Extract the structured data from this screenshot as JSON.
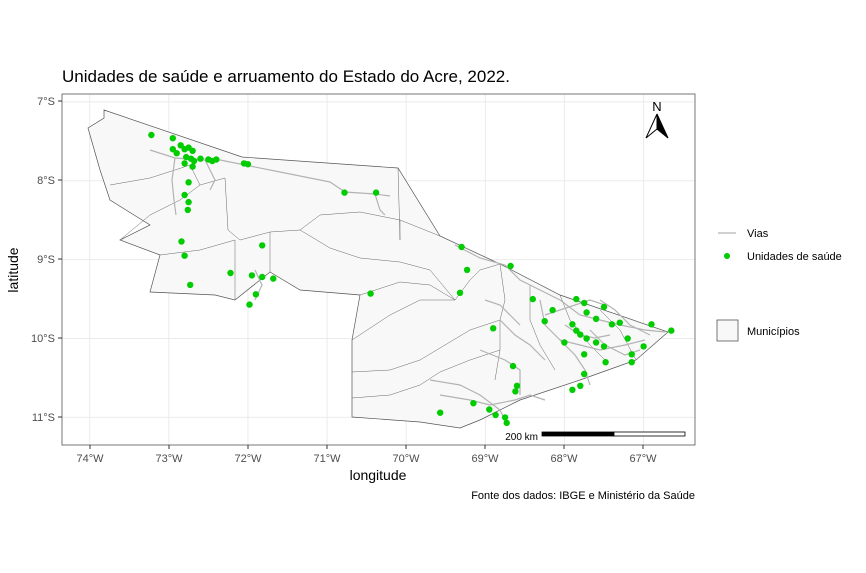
{
  "title": "Unidades de saúde e arruamento do Estado do Acre, 2022.",
  "caption": "Fonte dos dados: IBGE e Ministério da Saúde",
  "axes": {
    "xlabel": "longitude",
    "ylabel": "latitude",
    "xticks": [
      "74°W",
      "73°W",
      "72°W",
      "71°W",
      "70°W",
      "69°W",
      "68°W",
      "67°W"
    ],
    "yticks": [
      "7°S",
      "8°S",
      "9°S",
      "10°S",
      "11°S"
    ]
  },
  "legend": {
    "lines": [
      {
        "label": "Vias",
        "color": "#b3b3b3"
      },
      {
        "label": "Unidades de saúde",
        "color": "#00cc00"
      }
    ],
    "fill": {
      "label": "Municípios",
      "fill": "#f8f8f8",
      "stroke": "#555555"
    }
  },
  "north_arrow": {
    "label": "N"
  },
  "scalebar": {
    "label": "200 km"
  },
  "colors": {
    "points": "#00cc00",
    "roads": "#b3b3b3",
    "municipality_fill": "#f8f8f8",
    "grid": "#ebebeb"
  },
  "chart_data": {
    "type": "map",
    "xlim": [
      -74.35,
      -66.35
    ],
    "ylim": [
      -11.35,
      -6.9
    ],
    "points": [
      [
        -73.22,
        -7.42
      ],
      [
        -72.95,
        -7.46
      ],
      [
        -72.95,
        -7.6
      ],
      [
        -72.9,
        -7.65
      ],
      [
        -72.85,
        -7.55
      ],
      [
        -72.8,
        -7.6
      ],
      [
        -72.75,
        -7.58
      ],
      [
        -72.7,
        -7.62
      ],
      [
        -72.78,
        -7.7
      ],
      [
        -72.72,
        -7.72
      ],
      [
        -72.68,
        -7.75
      ],
      [
        -72.8,
        -7.78
      ],
      [
        -72.7,
        -7.82
      ],
      [
        -72.6,
        -7.72
      ],
      [
        -72.5,
        -7.73
      ],
      [
        -72.45,
        -7.75
      ],
      [
        -72.4,
        -7.73
      ],
      [
        -72.05,
        -7.78
      ],
      [
        -72.0,
        -7.79
      ],
      [
        -72.75,
        -8.02
      ],
      [
        -72.8,
        -8.18
      ],
      [
        -72.75,
        -8.27
      ],
      [
        -72.76,
        -8.37
      ],
      [
        -72.84,
        -8.77
      ],
      [
        -72.8,
        -8.95
      ],
      [
        -72.22,
        -9.17
      ],
      [
        -72.73,
        -9.32
      ],
      [
        -71.82,
        -8.82
      ],
      [
        -71.95,
        -9.2
      ],
      [
        -71.82,
        -9.22
      ],
      [
        -71.68,
        -9.24
      ],
      [
        -71.9,
        -9.44
      ],
      [
        -71.98,
        -9.57
      ],
      [
        -70.78,
        -8.15
      ],
      [
        -70.38,
        -8.15
      ],
      [
        -69.3,
        -8.84
      ],
      [
        -69.23,
        -9.13
      ],
      [
        -69.32,
        -9.42
      ],
      [
        -68.68,
        -9.08
      ],
      [
        -68.4,
        -9.5
      ],
      [
        -68.9,
        -9.87
      ],
      [
        -68.25,
        -9.78
      ],
      [
        -68.15,
        -9.64
      ],
      [
        -67.85,
        -9.5
      ],
      [
        -67.75,
        -9.55
      ],
      [
        -67.72,
        -9.67
      ],
      [
        -67.6,
        -9.75
      ],
      [
        -67.5,
        -9.6
      ],
      [
        -67.4,
        -9.82
      ],
      [
        -67.9,
        -9.82
      ],
      [
        -67.85,
        -9.9
      ],
      [
        -67.8,
        -9.95
      ],
      [
        -67.72,
        -10.0
      ],
      [
        -67.6,
        -10.05
      ],
      [
        -67.5,
        -10.1
      ],
      [
        -67.3,
        -9.8
      ],
      [
        -67.2,
        -10.0
      ],
      [
        -67.15,
        -10.2
      ],
      [
        -67.15,
        -10.3
      ],
      [
        -66.9,
        -9.82
      ],
      [
        -66.65,
        -9.9
      ],
      [
        -67.0,
        -10.1
      ],
      [
        -67.75,
        -10.2
      ],
      [
        -68.0,
        -10.05
      ],
      [
        -67.75,
        -10.45
      ],
      [
        -67.8,
        -10.6
      ],
      [
        -67.9,
        -10.65
      ],
      [
        -67.48,
        -10.3
      ],
      [
        -68.65,
        -10.35
      ],
      [
        -68.6,
        -10.6
      ],
      [
        -68.62,
        -10.67
      ],
      [
        -69.15,
        -10.82
      ],
      [
        -69.57,
        -10.94
      ],
      [
        -68.95,
        -10.9
      ],
      [
        -68.87,
        -10.97
      ],
      [
        -68.75,
        -11.0
      ],
      [
        -68.73,
        -11.07
      ],
      [
        -70.45,
        -9.43
      ]
    ]
  }
}
